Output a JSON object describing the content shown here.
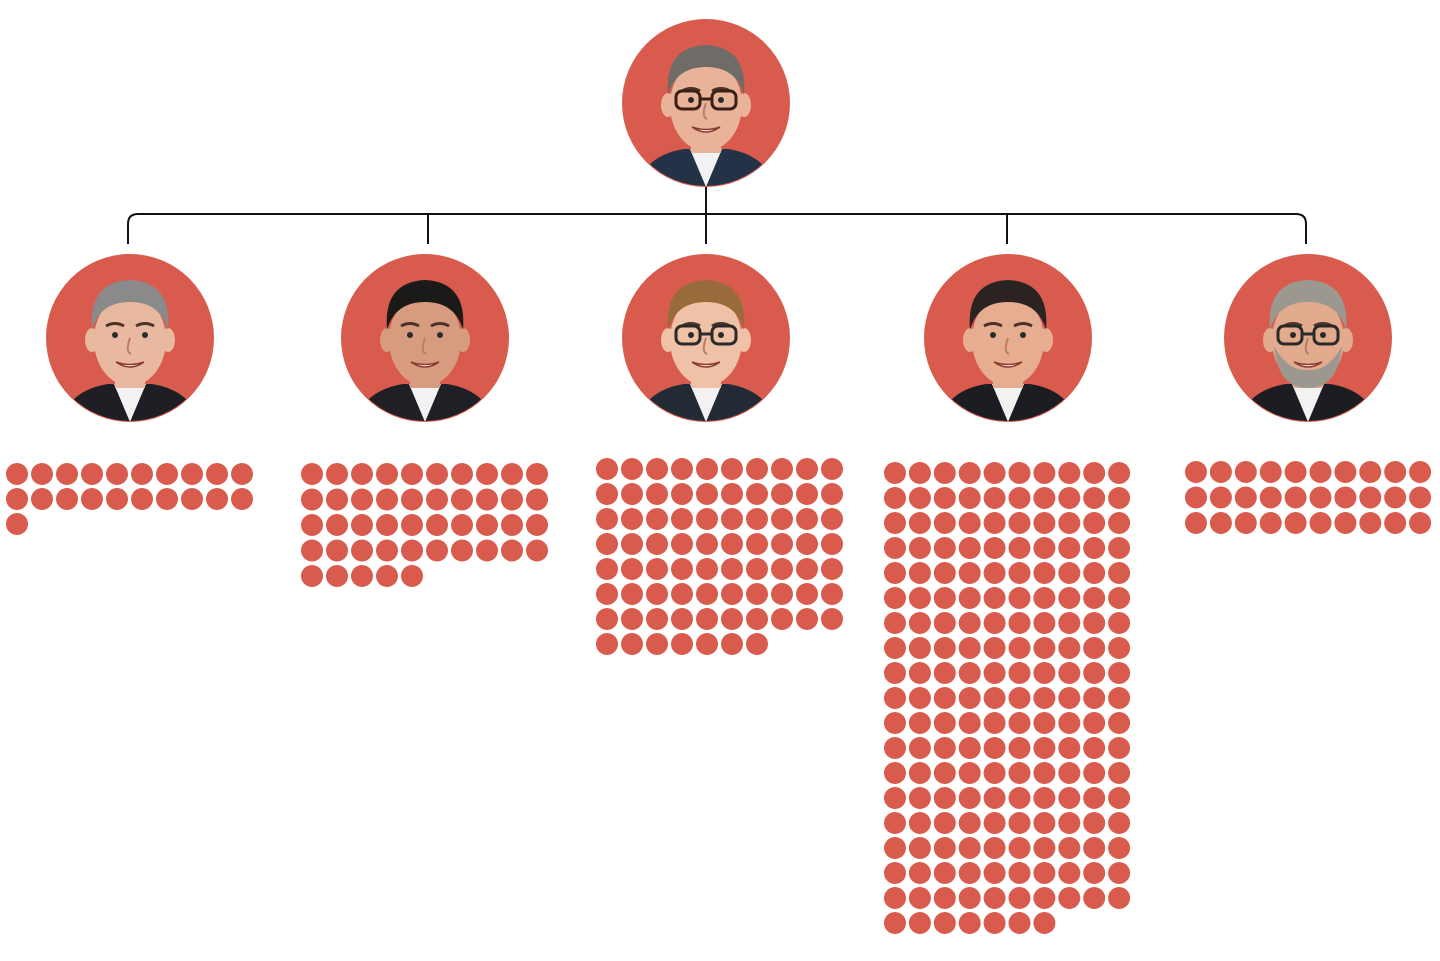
{
  "colors": {
    "accent": "#d95b4d",
    "connector": "#111111",
    "background": "#ffffff"
  },
  "chart_data": {
    "type": "unit-dot-tree",
    "root": {
      "icon": "portrait-man-glasses-icon"
    },
    "children": [
      {
        "icon": "portrait-man-bald-icon",
        "dots": 21
      },
      {
        "icon": "portrait-man-dark-hair-icon",
        "dots": 45
      },
      {
        "icon": "portrait-man-glasses-icon",
        "dots": 77
      },
      {
        "icon": "portrait-man-short-hair-icon",
        "dots": 187
      },
      {
        "icon": "portrait-man-beard-glasses-icon",
        "dots": 30
      }
    ]
  }
}
